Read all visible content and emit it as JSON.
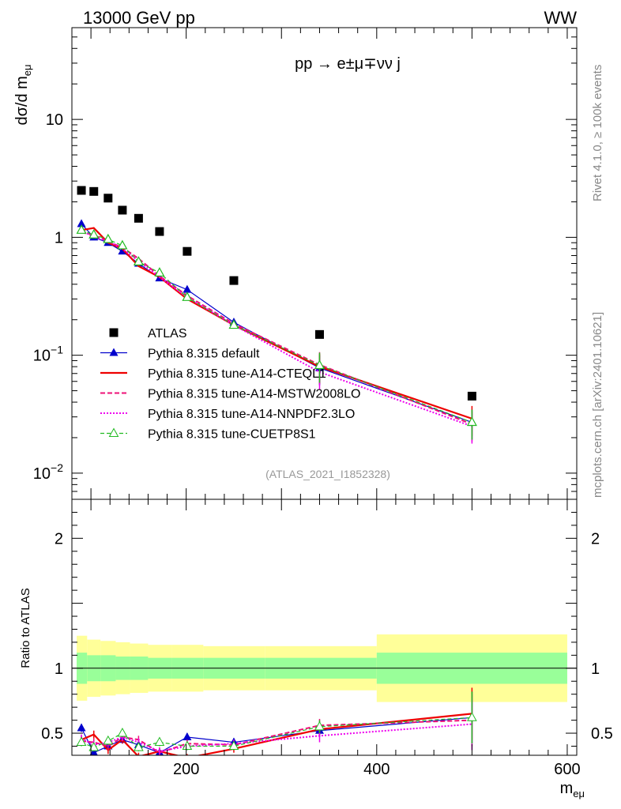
{
  "header": {
    "left": "13000 GeV pp",
    "right": "WW"
  },
  "process_label": "pp → e±μ∓νν j",
  "side_label_top": "Rivet 4.1.0, ≥ 100k events",
  "side_label_bottom": "mcplots.cern.ch [arXiv:2401.10621]",
  "analysis_id": "(ATLAS_2021_I1852328)",
  "colors": {
    "atlas": "#000000",
    "default": "#0000cc",
    "cteq": "#ee0000",
    "mstw": "#ee1177",
    "nnpdf": "#ee00ee",
    "cuetp": "#22bb22",
    "band_outer": "#ffff99",
    "band_inner": "#99ff99"
  },
  "chart_data": [
    {
      "type": "scatter",
      "yscale": "log",
      "ylabel": "dσ/d m_eμ",
      "xlim": [
        80,
        610
      ],
      "ylim": [
        0.006,
        60
      ],
      "ytick_labels": [
        "10^-2",
        "10^-1",
        "1",
        "10"
      ],
      "legend_position": "lower-left",
      "series": [
        {
          "key": "atlas",
          "name": "ATLAS",
          "style": "marker",
          "x": [
            90,
            103,
            118,
            133,
            150,
            172,
            201,
            250,
            340,
            500
          ],
          "values": [
            2.5,
            2.45,
            2.15,
            1.7,
            1.45,
            1.12,
            0.76,
            0.43,
            0.15,
            0.045
          ]
        },
        {
          "key": "default",
          "name": "Pythia 8.315 default",
          "style": "solid-triangle",
          "x": [
            90,
            103,
            118,
            133,
            150,
            172,
            201,
            250,
            340,
            500
          ],
          "values": [
            1.3,
            1.0,
            0.9,
            0.76,
            0.6,
            0.45,
            0.36,
            0.19,
            0.078,
            0.027
          ]
        },
        {
          "key": "cteq",
          "name": "Pythia 8.315 tune-A14-CTEQL1",
          "style": "thick",
          "x": [
            90,
            103,
            118,
            133,
            150,
            172,
            201,
            250,
            340,
            500
          ],
          "values": [
            1.15,
            1.2,
            0.9,
            0.8,
            0.57,
            0.46,
            0.3,
            0.18,
            0.08,
            0.029
          ]
        },
        {
          "key": "mstw",
          "name": "Pythia 8.315 tune-A14-MSTW2008LO",
          "style": "dashed",
          "x": [
            90,
            103,
            118,
            133,
            150,
            172,
            201,
            250,
            340,
            500
          ],
          "values": [
            1.1,
            1.05,
            0.92,
            0.82,
            0.66,
            0.47,
            0.32,
            0.185,
            0.083,
            0.026
          ]
        },
        {
          "key": "nnpdf",
          "name": "Pythia 8.315 tune-A14-NNPDF2.3LO",
          "style": "dotted",
          "x": [
            90,
            103,
            118,
            133,
            150,
            172,
            201,
            250,
            340,
            500
          ],
          "values": [
            1.15,
            1.0,
            0.93,
            0.8,
            0.63,
            0.46,
            0.31,
            0.18,
            0.072,
            0.025
          ]
        },
        {
          "key": "cuetp",
          "name": "Pythia 8.315 tune-CUETP8S1",
          "style": "dashed-open-triangle",
          "x": [
            90,
            103,
            118,
            133,
            150,
            172,
            201,
            250,
            340,
            500
          ],
          "values": [
            1.15,
            1.05,
            0.96,
            0.85,
            0.62,
            0.5,
            0.31,
            0.18,
            0.082,
            0.027
          ]
        }
      ]
    },
    {
      "type": "line",
      "xlabel": "m_eμ",
      "ylabel": "Ratio to ATLAS",
      "xlim": [
        80,
        610
      ],
      "ylim": [
        0.33,
        2.3
      ],
      "xticks": [
        200,
        400,
        600
      ],
      "yticks": [
        0.5,
        1,
        2
      ],
      "bin_edges": [
        85,
        96,
        110,
        126,
        141,
        160,
        185,
        218,
        283,
        400,
        600
      ],
      "band_outer": [
        0.25,
        0.22,
        0.21,
        0.2,
        0.19,
        0.18,
        0.18,
        0.17,
        0.17,
        0.26
      ],
      "band_inner": [
        0.12,
        0.1,
        0.1,
        0.09,
        0.09,
        0.08,
        0.08,
        0.08,
        0.08,
        0.12
      ],
      "series": [
        {
          "key": "default",
          "name": "Pythia 8.315 default",
          "x": [
            90,
            103,
            118,
            133,
            150,
            172,
            201,
            250,
            340,
            500
          ],
          "values": [
            0.54,
            0.35,
            0.4,
            0.45,
            0.41,
            0.35,
            0.47,
            0.43,
            0.52,
            0.62
          ]
        },
        {
          "key": "cteq",
          "name": "Pythia 8.315 tune-A14-CTEQL1",
          "x": [
            90,
            103,
            118,
            133,
            150,
            172,
            201,
            250,
            340,
            500
          ],
          "values": [
            0.45,
            0.49,
            0.37,
            0.45,
            0.32,
            0.36,
            0.31,
            0.38,
            0.53,
            0.65
          ]
        },
        {
          "key": "mstw",
          "name": "Pythia 8.315 tune-A14-MSTW2008LO",
          "x": [
            90,
            103,
            118,
            133,
            150,
            172,
            201,
            250,
            340,
            500
          ],
          "values": [
            0.44,
            0.43,
            0.4,
            0.47,
            0.45,
            0.35,
            0.42,
            0.41,
            0.56,
            0.6
          ]
        },
        {
          "key": "nnpdf",
          "name": "Pythia 8.315 tune-A14-NNPDF2.3LO",
          "x": [
            90,
            103,
            118,
            133,
            150,
            172,
            201,
            250,
            340,
            500
          ],
          "values": [
            0.46,
            0.41,
            0.43,
            0.47,
            0.43,
            0.36,
            0.4,
            0.42,
            0.48,
            0.57
          ]
        },
        {
          "key": "cuetp",
          "name": "Pythia 8.315 tune-CUETP8S1",
          "x": [
            90,
            103,
            118,
            133,
            150,
            172,
            201,
            250,
            340,
            500
          ],
          "values": [
            0.43,
            0.39,
            0.44,
            0.5,
            0.39,
            0.43,
            0.4,
            0.4,
            0.55,
            0.62
          ]
        }
      ]
    }
  ]
}
